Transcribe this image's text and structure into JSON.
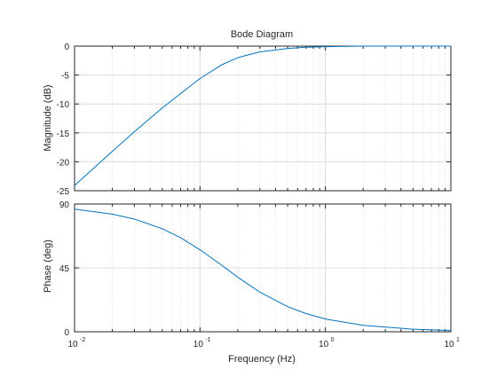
{
  "chart_data": [
    {
      "type": "line",
      "panel": "magnitude",
      "title": "Bode Diagram",
      "ylabel": "Magnitude (dB)",
      "xlabel": "",
      "xscale": "log",
      "xlim": [
        0.01,
        10
      ],
      "ylim": [
        -25,
        0
      ],
      "yticks": [
        0,
        -5,
        -10,
        -15,
        -20,
        -25
      ],
      "ytick_labels": [
        "0",
        "-5",
        "-10",
        "-15",
        "-20",
        "-25"
      ],
      "grid": true,
      "legend": "none",
      "line_color": "#0072BD",
      "series": [
        {
          "x": [
            0.01,
            0.02,
            0.03,
            0.05,
            0.07,
            0.1,
            0.15,
            0.2,
            0.3,
            0.5,
            0.7,
            1,
            2,
            5,
            10
          ],
          "values": [
            -24.1,
            -18.2,
            -14.8,
            -10.7,
            -8.2,
            -5.6,
            -3.2,
            -2.0,
            -1.0,
            -0.4,
            -0.2,
            -0.1,
            0,
            0,
            0
          ]
        }
      ]
    },
    {
      "type": "line",
      "panel": "phase",
      "title": "",
      "ylabel": "Phase (deg)",
      "xlabel": "Frequency  (Hz)",
      "xscale": "log",
      "xlim": [
        0.01,
        10
      ],
      "ylim": [
        0,
        90
      ],
      "yticks": [
        0,
        45,
        90
      ],
      "ytick_labels": [
        "0",
        "45",
        "90"
      ],
      "xtick_base": "10",
      "xtick_exponents": [
        "-2",
        "-1",
        "0",
        "1"
      ],
      "grid": true,
      "legend": "none",
      "line_color": "#0072BD",
      "series": [
        {
          "x": [
            0.01,
            0.02,
            0.03,
            0.05,
            0.07,
            0.1,
            0.15,
            0.2,
            0.3,
            0.5,
            0.7,
            1,
            2,
            5,
            10
          ],
          "values": [
            86.4,
            82.9,
            79.4,
            72.6,
            66.3,
            57.8,
            46.7,
            38.5,
            27.9,
            17.7,
            12.8,
            9.0,
            4.5,
            1.8,
            0.9
          ]
        }
      ]
    }
  ]
}
